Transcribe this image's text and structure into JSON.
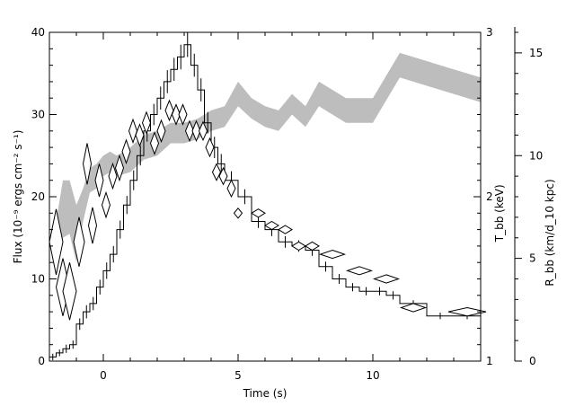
{
  "chart_data": {
    "type": "line",
    "xlabel": "Time (s)",
    "x_ticks": [
      0,
      5,
      10
    ],
    "xlim": [
      -2,
      14
    ],
    "left_axis": {
      "label": "Flux (10⁻⁹ ergs cm⁻² s⁻¹)",
      "range": [
        0,
        40
      ],
      "ticks": [
        0,
        10,
        20,
        30,
        40
      ]
    },
    "temp_axis": {
      "label": "T_bb (keV)",
      "range": [
        1,
        3
      ],
      "ticks": [
        1,
        2,
        3
      ]
    },
    "radius_axis": {
      "label": "R_bb (km/d_10 kpc)",
      "range": [
        0,
        16
      ],
      "ticks": [
        0,
        5,
        10,
        15
      ]
    },
    "band_color": "#bdbdbd",
    "series": [
      {
        "style": "histogram",
        "edges": [
          -2.0,
          -1.75,
          -1.5,
          -1.25,
          -1.0,
          -0.75,
          -0.5,
          -0.25,
          0.0,
          0.25,
          0.5,
          0.75,
          1.0,
          1.25,
          1.5,
          1.75,
          2.0,
          2.25,
          2.5,
          2.75,
          3.0,
          3.25,
          3.5,
          3.75,
          4.0,
          4.25,
          4.5,
          5.0,
          5.5,
          6.0,
          6.5,
          7.0,
          7.5,
          8.0,
          8.5,
          9.0,
          9.5,
          10.0,
          10.5,
          11.0,
          12.0,
          13.0,
          14.0
        ],
        "values": [
          0.5,
          1.0,
          1.5,
          2.0,
          4.5,
          6.0,
          7.0,
          9.0,
          11.0,
          13.0,
          16.0,
          19.0,
          22.0,
          25.0,
          28.0,
          30.0,
          32.0,
          34.0,
          35.5,
          37.0,
          38.5,
          36.0,
          33.0,
          29.0,
          26.0,
          24.0,
          22.0,
          20.0,
          17.0,
          16.0,
          14.5,
          14.0,
          13.5,
          11.5,
          10.0,
          9.0,
          8.5,
          8.5,
          8.0,
          7.0,
          5.5,
          5.5
        ],
        "errors": [
          0.4,
          0.4,
          0.5,
          0.5,
          0.7,
          0.8,
          0.8,
          0.9,
          1.0,
          1.0,
          1.1,
          1.1,
          1.2,
          1.2,
          1.3,
          1.3,
          1.4,
          1.4,
          1.4,
          1.5,
          1.5,
          1.4,
          1.4,
          1.3,
          1.3,
          1.2,
          1.1,
          0.9,
          0.8,
          0.8,
          0.7,
          0.7,
          0.7,
          0.6,
          0.6,
          0.5,
          0.5,
          0.5,
          0.5,
          0.4,
          0.4,
          0.4
        ]
      },
      {
        "style": "diamonds",
        "points": [
          {
            "x": -1.75,
            "y": 14.5,
            "dx": 0.25,
            "dy": 4.0
          },
          {
            "x": -1.5,
            "y": 9.0,
            "dx": 0.25,
            "dy": 3.5
          },
          {
            "x": -1.25,
            "y": 8.5,
            "dx": 0.25,
            "dy": 3.5
          },
          {
            "x": -0.9,
            "y": 14.5,
            "dx": 0.2,
            "dy": 3.0
          },
          {
            "x": -0.6,
            "y": 24.0,
            "dx": 0.15,
            "dy": 2.5
          },
          {
            "x": -0.4,
            "y": 16.5,
            "dx": 0.15,
            "dy": 2.2
          },
          {
            "x": -0.15,
            "y": 22.0,
            "dx": 0.15,
            "dy": 2.0
          },
          {
            "x": 0.1,
            "y": 19.0,
            "dx": 0.15,
            "dy": 1.5
          },
          {
            "x": 0.35,
            "y": 22.5,
            "dx": 0.15,
            "dy": 1.5
          },
          {
            "x": 0.6,
            "y": 23.5,
            "dx": 0.15,
            "dy": 1.5
          },
          {
            "x": 0.85,
            "y": 25.5,
            "dx": 0.15,
            "dy": 1.4
          },
          {
            "x": 1.1,
            "y": 28.0,
            "dx": 0.15,
            "dy": 1.4
          },
          {
            "x": 1.35,
            "y": 27.5,
            "dx": 0.15,
            "dy": 1.3
          },
          {
            "x": 1.6,
            "y": 29.0,
            "dx": 0.15,
            "dy": 1.3
          },
          {
            "x": 1.9,
            "y": 26.5,
            "dx": 0.15,
            "dy": 1.3
          },
          {
            "x": 2.15,
            "y": 28.0,
            "dx": 0.15,
            "dy": 1.3
          },
          {
            "x": 2.45,
            "y": 30.5,
            "dx": 0.15,
            "dy": 1.2
          },
          {
            "x": 2.7,
            "y": 30.0,
            "dx": 0.15,
            "dy": 1.2
          },
          {
            "x": 2.95,
            "y": 30.0,
            "dx": 0.15,
            "dy": 1.2
          },
          {
            "x": 3.2,
            "y": 28.0,
            "dx": 0.15,
            "dy": 1.2
          },
          {
            "x": 3.45,
            "y": 28.0,
            "dx": 0.15,
            "dy": 1.2
          },
          {
            "x": 3.7,
            "y": 28.0,
            "dx": 0.15,
            "dy": 1.1
          },
          {
            "x": 3.95,
            "y": 26.0,
            "dx": 0.15,
            "dy": 1.1
          },
          {
            "x": 4.2,
            "y": 23.0,
            "dx": 0.15,
            "dy": 1.0
          },
          {
            "x": 4.45,
            "y": 22.5,
            "dx": 0.15,
            "dy": 1.0
          },
          {
            "x": 4.75,
            "y": 21.0,
            "dx": 0.15,
            "dy": 1.0
          },
          {
            "x": 5.0,
            "y": 18.0,
            "dx": 0.15,
            "dy": 0.6
          },
          {
            "x": 5.75,
            "y": 18.0,
            "dx": 0.25,
            "dy": 0.5
          },
          {
            "x": 6.25,
            "y": 16.5,
            "dx": 0.25,
            "dy": 0.5
          },
          {
            "x": 6.75,
            "y": 16.0,
            "dx": 0.25,
            "dy": 0.5
          },
          {
            "x": 7.25,
            "y": 14.0,
            "dx": 0.25,
            "dy": 0.5
          },
          {
            "x": 7.75,
            "y": 14.0,
            "dx": 0.25,
            "dy": 0.5
          },
          {
            "x": 8.5,
            "y": 13.0,
            "dx": 0.45,
            "dy": 0.5
          },
          {
            "x": 9.5,
            "y": 11.0,
            "dx": 0.45,
            "dy": 0.5
          },
          {
            "x": 10.5,
            "y": 10.0,
            "dx": 0.45,
            "dy": 0.5
          },
          {
            "x": 11.5,
            "y": 6.5,
            "dx": 0.45,
            "dy": 0.5
          },
          {
            "x": 13.5,
            "y": 6.0,
            "dx": 0.7,
            "dy": 0.5
          }
        ]
      },
      {
        "style": "band",
        "x": [
          -1.7,
          -1.5,
          -1.25,
          -1.0,
          -0.75,
          -0.5,
          -0.25,
          0.0,
          0.25,
          0.5,
          1.0,
          1.5,
          2.0,
          2.5,
          3.0,
          3.5,
          4.0,
          4.5,
          5.0,
          5.5,
          6.0,
          6.5,
          7.0,
          7.5,
          8.0,
          9.0,
          10.0,
          11.0,
          12.0,
          13.0,
          14.0
        ],
        "upper": [
          18.0,
          22.0,
          22.0,
          19.0,
          21.0,
          23.5,
          24.0,
          25.0,
          25.5,
          25.0,
          26.0,
          27.5,
          28.0,
          29.0,
          29.0,
          29.5,
          30.5,
          31.0,
          34.0,
          32.0,
          31.0,
          30.5,
          32.5,
          31.0,
          34.0,
          32.0,
          32.0,
          37.5,
          36.5,
          35.5,
          34.5
        ],
        "lower": [
          12.5,
          15.0,
          15.5,
          12.0,
          17.0,
          20.5,
          21.0,
          22.5,
          23.0,
          22.5,
          23.0,
          24.5,
          25.0,
          26.5,
          26.5,
          27.0,
          28.0,
          28.5,
          31.0,
          29.5,
          28.5,
          28.0,
          30.0,
          28.5,
          31.0,
          29.0,
          29.0,
          34.5,
          33.5,
          32.5,
          31.5
        ]
      }
    ]
  }
}
